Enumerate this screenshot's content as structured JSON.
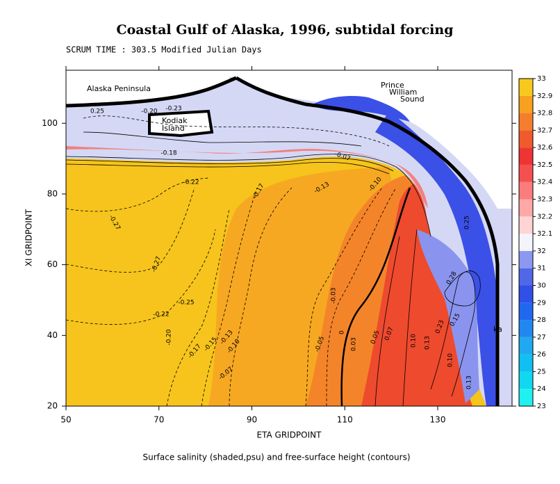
{
  "chart_data": {
    "type": "heatmap",
    "title": "Coastal Gulf of Alaska, 1996, subtidal forcing",
    "subtitle": "SCRUM TIME : 303.5 Modified Julian Days",
    "xlabel": "ETA GRIDPOINT",
    "ylabel": "XI GRIDPOINT",
    "caption": "Surface salinity (shaded,psu) and free-surface height (contours)",
    "xlim": [
      50,
      146
    ],
    "ylim": [
      20,
      115
    ],
    "xticks": [
      50,
      70,
      90,
      110,
      130
    ],
    "yticks": [
      20,
      40,
      60,
      80,
      100
    ],
    "colorbar": {
      "levels": [
        23,
        24,
        25,
        26,
        27,
        28,
        29,
        30,
        31,
        32,
        32.1,
        32.2,
        32.3,
        32.4,
        32.5,
        32.6,
        32.7,
        32.8,
        32.9,
        33
      ],
      "colors": [
        "#20f0f0",
        "#10d8f0",
        "#10c0f0",
        "#20a8f0",
        "#2088f0",
        "#2068f0",
        "#3050e8",
        "#5068e8",
        "#8c98f0",
        "#f4f4fc",
        "#ffd4d4",
        "#ffa8a8",
        "#fb7c7c",
        "#f55050",
        "#ef3434",
        "#f05a2c",
        "#f47e2c",
        "#f8a020",
        "#f8c81c"
      ]
    },
    "place_labels": [
      "Alaska Peninsula",
      "Kodiak",
      "Island",
      "Prince",
      "William",
      "Sound",
      "ka"
    ],
    "contour_labels": [
      "0.25",
      "-0.20",
      "-0.23",
      "-0.18",
      "-0.22",
      "-0.27",
      "-0.17",
      "-0.13",
      "-0.10",
      "-0.07",
      "-0.27",
      "-0.25",
      "-0.22",
      "-0.20",
      "-0.17",
      "-0.15",
      "-0.13",
      "-0.10",
      "-0.07",
      "-0.03",
      "0",
      "0.03",
      "-0.05",
      "0.05",
      "0.07",
      "0.10",
      "0.13",
      "0.23",
      "0.15",
      "0.28",
      "0.25",
      "0.13",
      "0.10"
    ]
  }
}
